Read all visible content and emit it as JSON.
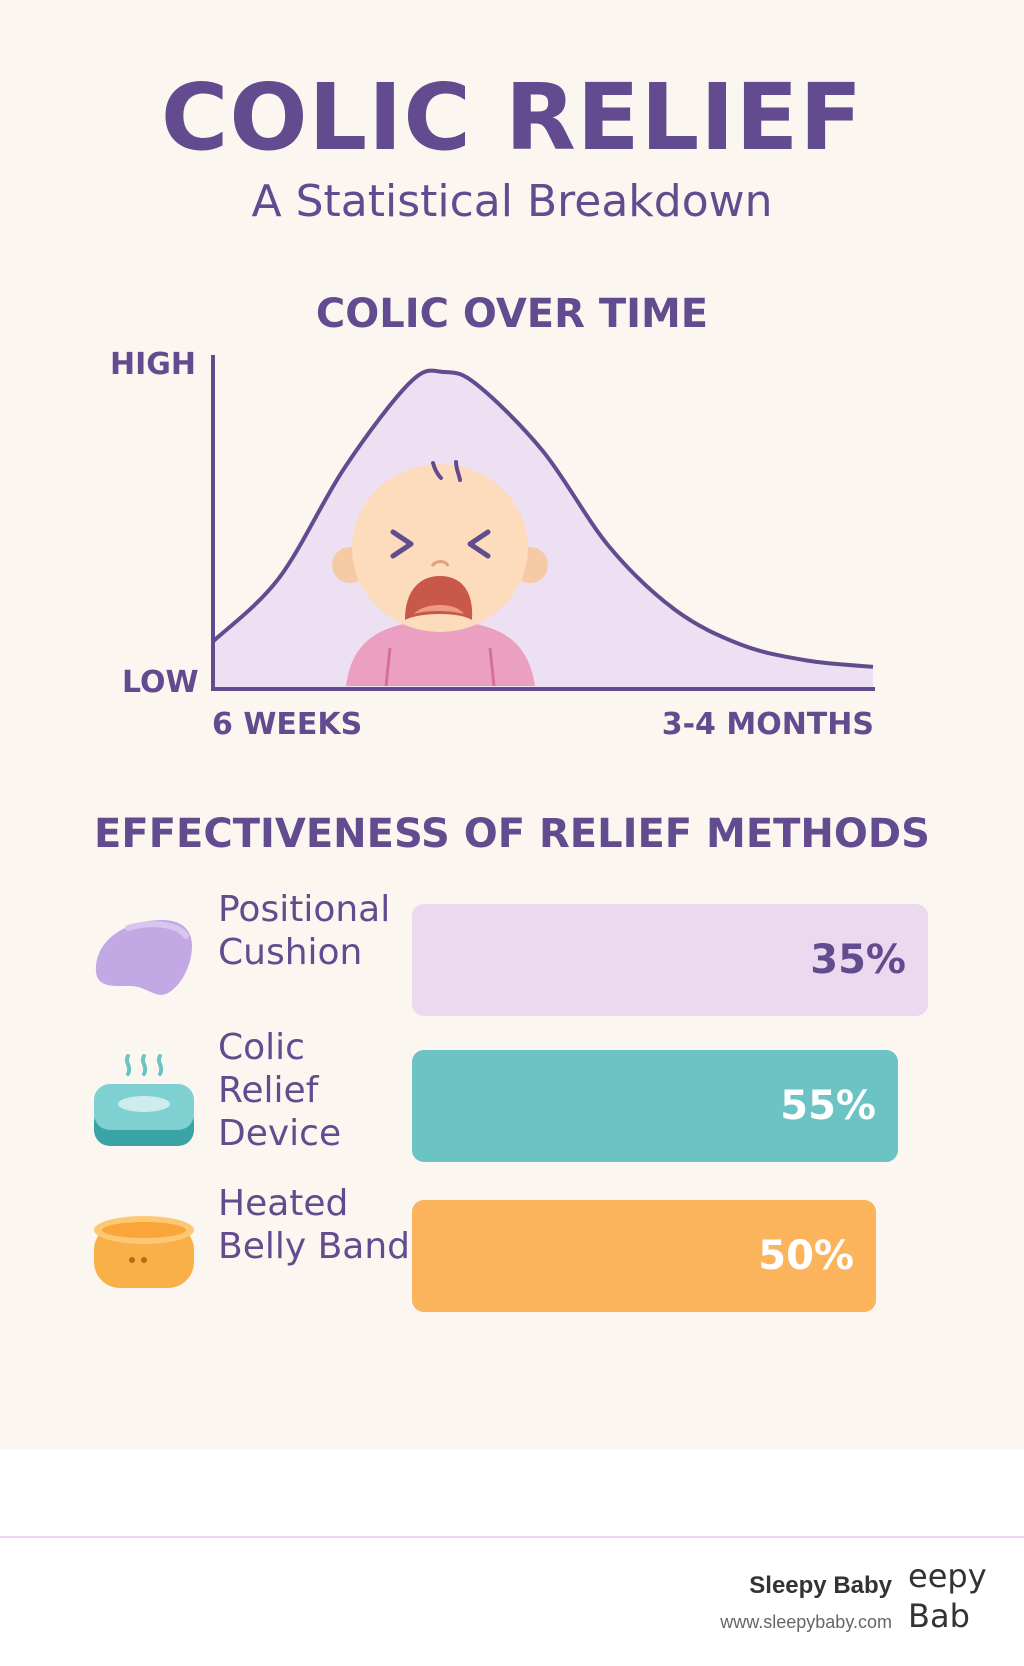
{
  "header": {
    "title": "COLIC RELIEF",
    "subtitle": "A Statistical Breakdown"
  },
  "colors": {
    "primary_purple": "#634b8f",
    "curve_fill": "#ece0f2",
    "background": "#fcf6f1",
    "cushion_bar": "#ead9ef",
    "device_bar": "#6bc3c4",
    "belly_band_bar": "#fbb35c"
  },
  "chart_data": [
    {
      "type": "area",
      "title": "COLIC OVER TIME",
      "y_tick_labels": [
        "LOW",
        "HIGH"
      ],
      "x_tick_labels": [
        "6 WEEKS",
        "3-4 MONTHS"
      ],
      "description_points": {
        "x": [
          0,
          0.1,
          0.2,
          0.3,
          0.35,
          0.4,
          0.5,
          0.6,
          0.7,
          0.8,
          0.9,
          1.0
        ],
        "y": [
          0.15,
          0.35,
          0.7,
          0.97,
          1.0,
          0.96,
          0.75,
          0.45,
          0.25,
          0.14,
          0.09,
          0.07
        ]
      },
      "illustration": "crying-baby-illustration"
    },
    {
      "type": "bar",
      "orientation": "horizontal",
      "title": "EFFECTIVENESS OF RELIEF METHODS",
      "categories": [
        "Positional\nCushion",
        "Colic\nRelief\nDevice",
        "Heated\nBelly Band"
      ],
      "values": [
        35,
        55,
        50
      ],
      "value_labels": [
        "35%",
        "55%",
        "50%"
      ],
      "icons": [
        "cushion-icon",
        "heated-device-icon",
        "belly-band-icon"
      ]
    }
  ],
  "footer": {
    "brand": "Sleepy Baby",
    "url": "www.sleepybaby.com",
    "logo_text": "eepy\nBab"
  }
}
